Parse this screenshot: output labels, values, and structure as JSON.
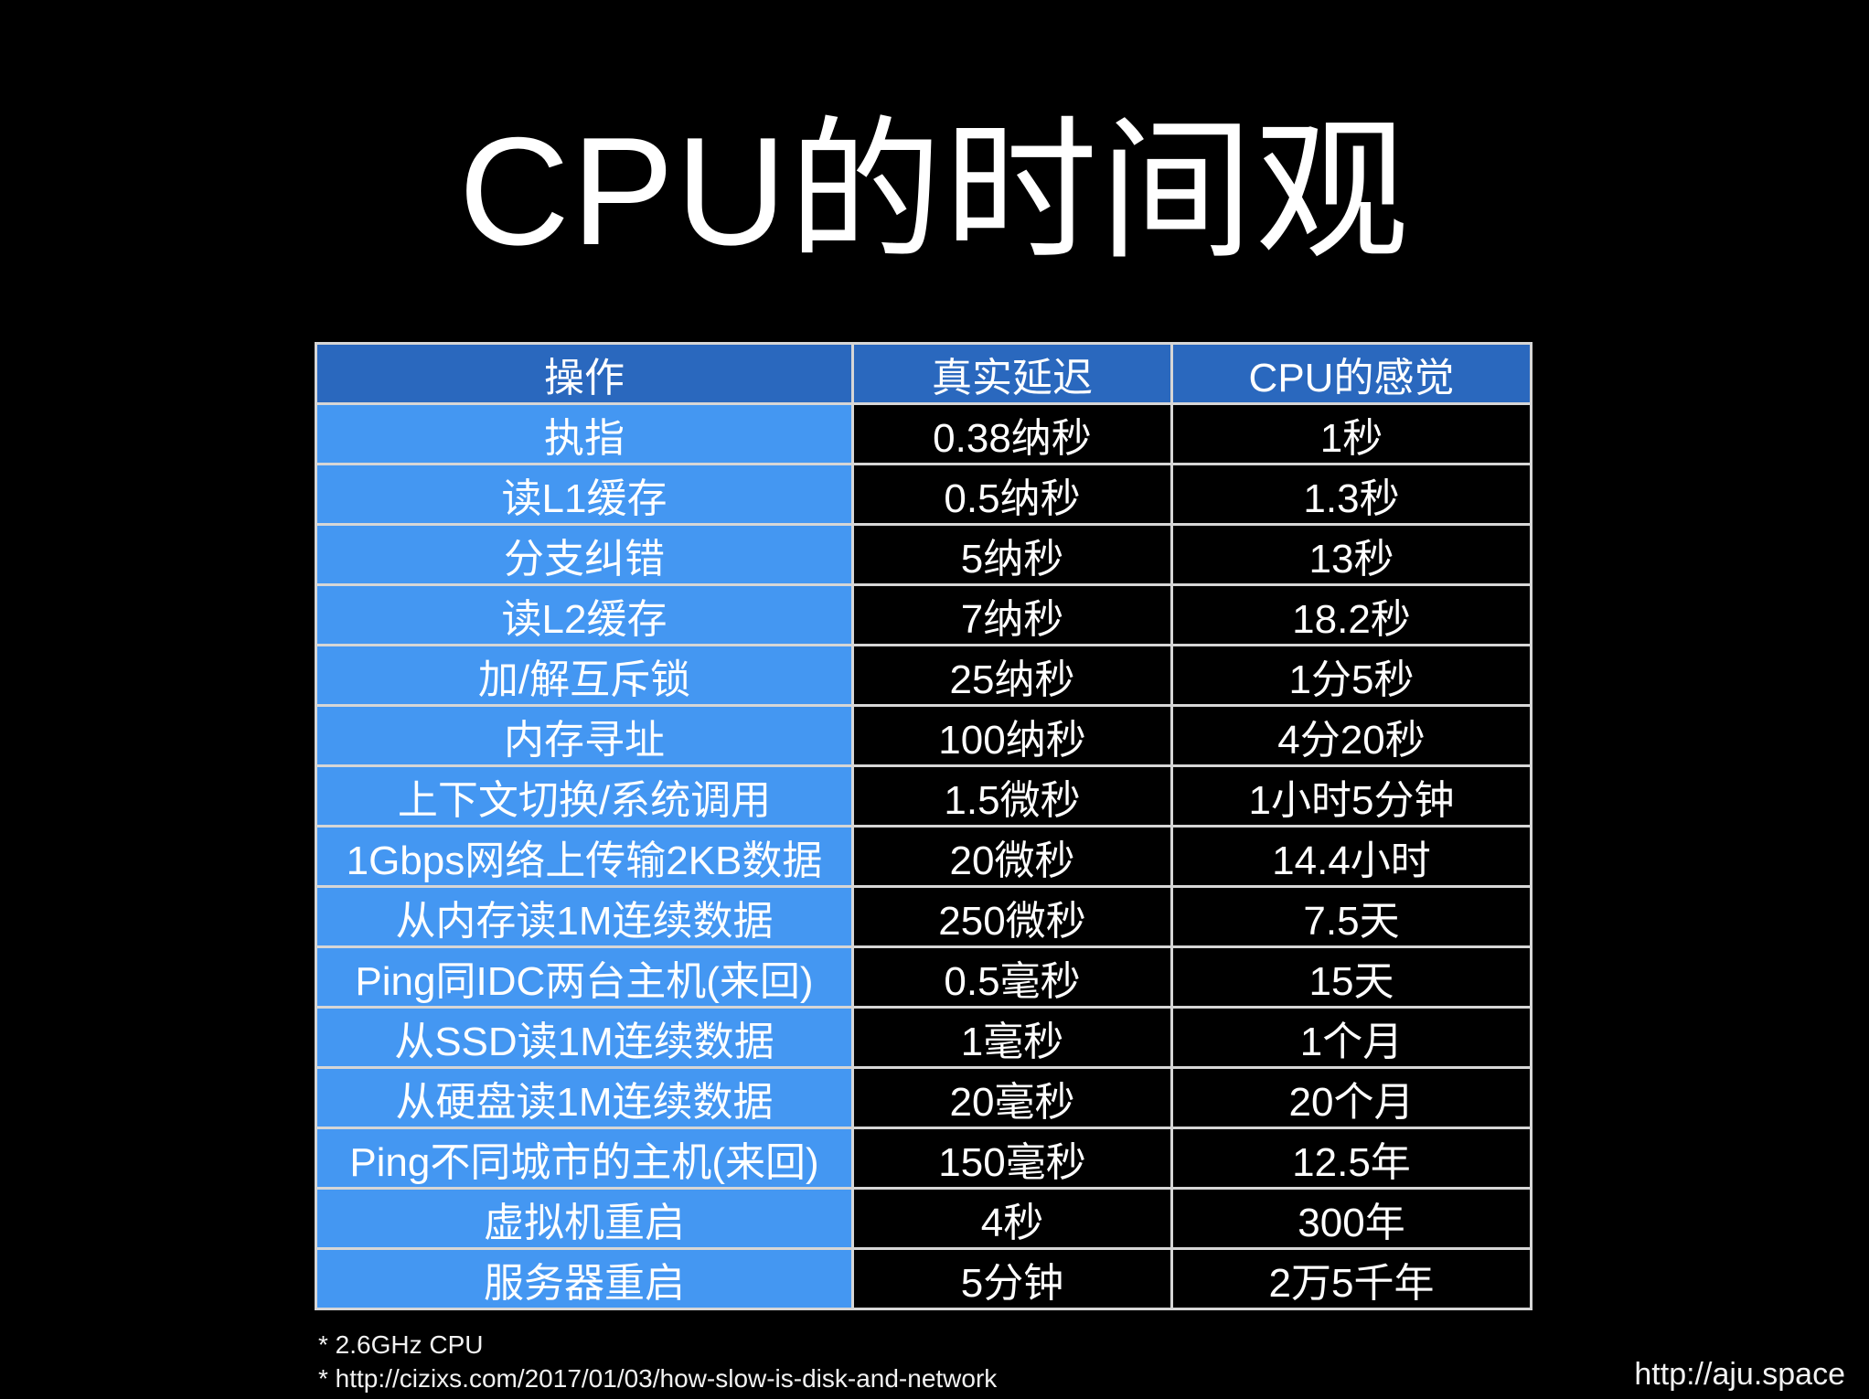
{
  "slide": {
    "title": "CPU的时间观",
    "footnote_cpu": "* 2.6GHz CPU",
    "footnote_source": "* http://cizixs.com/2017/01/03/how-slow-is-disk-and-network",
    "watermark": "http://aju.space"
  },
  "table": {
    "headers": [
      "操作",
      "真实延迟",
      "CPU的感觉"
    ],
    "rows": [
      [
        "执指",
        "0.38纳秒",
        "1秒"
      ],
      [
        "读L1缓存",
        "0.5纳秒",
        "1.3秒"
      ],
      [
        "分支纠错",
        "5纳秒",
        "13秒"
      ],
      [
        "读L2缓存",
        "7纳秒",
        "18.2秒"
      ],
      [
        "加/解互斥锁",
        "25纳秒",
        "1分5秒"
      ],
      [
        "内存寻址",
        "100纳秒",
        "4分20秒"
      ],
      [
        "上下文切换/系统调用",
        "1.5微秒",
        "1小时5分钟"
      ],
      [
        "1Gbps网络上传输2KB数据",
        "20微秒",
        "14.4小时"
      ],
      [
        "从内存读1M连续数据",
        "250微秒",
        "7.5天"
      ],
      [
        "Ping同IDC两台主机(来回)",
        "0.5毫秒",
        "15天"
      ],
      [
        "从SSD读1M连续数据",
        "1毫秒",
        "1个月"
      ],
      [
        "从硬盘读1M连续数据",
        "20毫秒",
        "20个月"
      ],
      [
        "Ping不同城市的主机(来回)",
        "150毫秒",
        "12.5年"
      ],
      [
        "虚拟机重启",
        "4秒",
        "300年"
      ],
      [
        "服务器重启",
        "5分钟",
        "2万5千年"
      ]
    ]
  },
  "colors": {
    "background": "#000000",
    "header_bg": "#2a68be",
    "operation_col_bg": "#4497f2",
    "value_cell_bg": "#000000",
    "border": "#d6d6d6",
    "text": "#ffffff"
  }
}
